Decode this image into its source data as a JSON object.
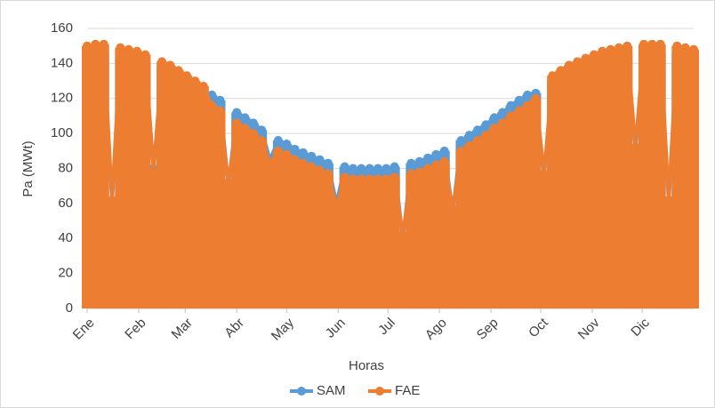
{
  "chart_data": {
    "type": "line",
    "x_label": "Horas",
    "y_label": "Pa (MWt)",
    "x": [
      0,
      5,
      10,
      15,
      20,
      25,
      30,
      35,
      40,
      45,
      50,
      55,
      60,
      65,
      70,
      75,
      80,
      85,
      90,
      95,
      100,
      105,
      110,
      115,
      120,
      125,
      130,
      135,
      140,
      145,
      150,
      155,
      160,
      165,
      170,
      175,
      180,
      185,
      190,
      195,
      200,
      205,
      210,
      215,
      220,
      225,
      230,
      235,
      240,
      245,
      250,
      255,
      260,
      265,
      270,
      275,
      280,
      285,
      290,
      295,
      300,
      305,
      310,
      315,
      320,
      325,
      330,
      335,
      340,
      345,
      350,
      355,
      360,
      365
    ],
    "series": [
      {
        "name": "SAM",
        "color": "#5b9bd5",
        "values": [
          146,
          147,
          147,
          60,
          145,
          144,
          143,
          141,
          80,
          137,
          135,
          132,
          129,
          126,
          123,
          122,
          119,
          70,
          112,
          109,
          106,
          102,
          85,
          96,
          94,
          91,
          89,
          87,
          85,
          83,
          60,
          81,
          80,
          80,
          80,
          80,
          80,
          81,
          40,
          83,
          84,
          86,
          88,
          90,
          55,
          96,
          99,
          102,
          105,
          109,
          112,
          116,
          119,
          122,
          123,
          75,
          129,
          132,
          135,
          137,
          139,
          141,
          143,
          144,
          145,
          146,
          90,
          147,
          147,
          147,
          60,
          146,
          145,
          144
        ]
      },
      {
        "name": "FAE",
        "color": "#ed7d31",
        "values": [
          150,
          151,
          151,
          62,
          149,
          148,
          147,
          145,
          78,
          141,
          139,
          136,
          133,
          130,
          127,
          116,
          113,
          72,
          106,
          103,
          100,
          96,
          83,
          90,
          88,
          85,
          83,
          81,
          79,
          77,
          58,
          75,
          74,
          74,
          74,
          74,
          74,
          75,
          42,
          77,
          78,
          80,
          82,
          84,
          57,
          90,
          93,
          96,
          99,
          103,
          106,
          110,
          113,
          116,
          120,
          77,
          133,
          136,
          139,
          141,
          143,
          145,
          147,
          148,
          149,
          150,
          92,
          151,
          151,
          151,
          62,
          150,
          149,
          148
        ]
      }
    ],
    "xlim": [
      0,
      365
    ],
    "xticks": [
      {
        "value": 0,
        "label": "Ene"
      },
      {
        "value": 31,
        "label": "Feb"
      },
      {
        "value": 59,
        "label": "Mar"
      },
      {
        "value": 90,
        "label": "Abr"
      },
      {
        "value": 120,
        "label": "May"
      },
      {
        "value": 151,
        "label": "Jun"
      },
      {
        "value": 181,
        "label": "Jul"
      },
      {
        "value": 212,
        "label": "Ago"
      },
      {
        "value": 243,
        "label": "Sep"
      },
      {
        "value": 273,
        "label": "Oct"
      },
      {
        "value": 304,
        "label": "Nov"
      },
      {
        "value": 334,
        "label": "Dic"
      }
    ],
    "ylim": [
      0,
      160
    ],
    "yticks": [
      0,
      20,
      40,
      60,
      80,
      100,
      120,
      140,
      160
    ],
    "grid": true,
    "legend": "bottom"
  }
}
